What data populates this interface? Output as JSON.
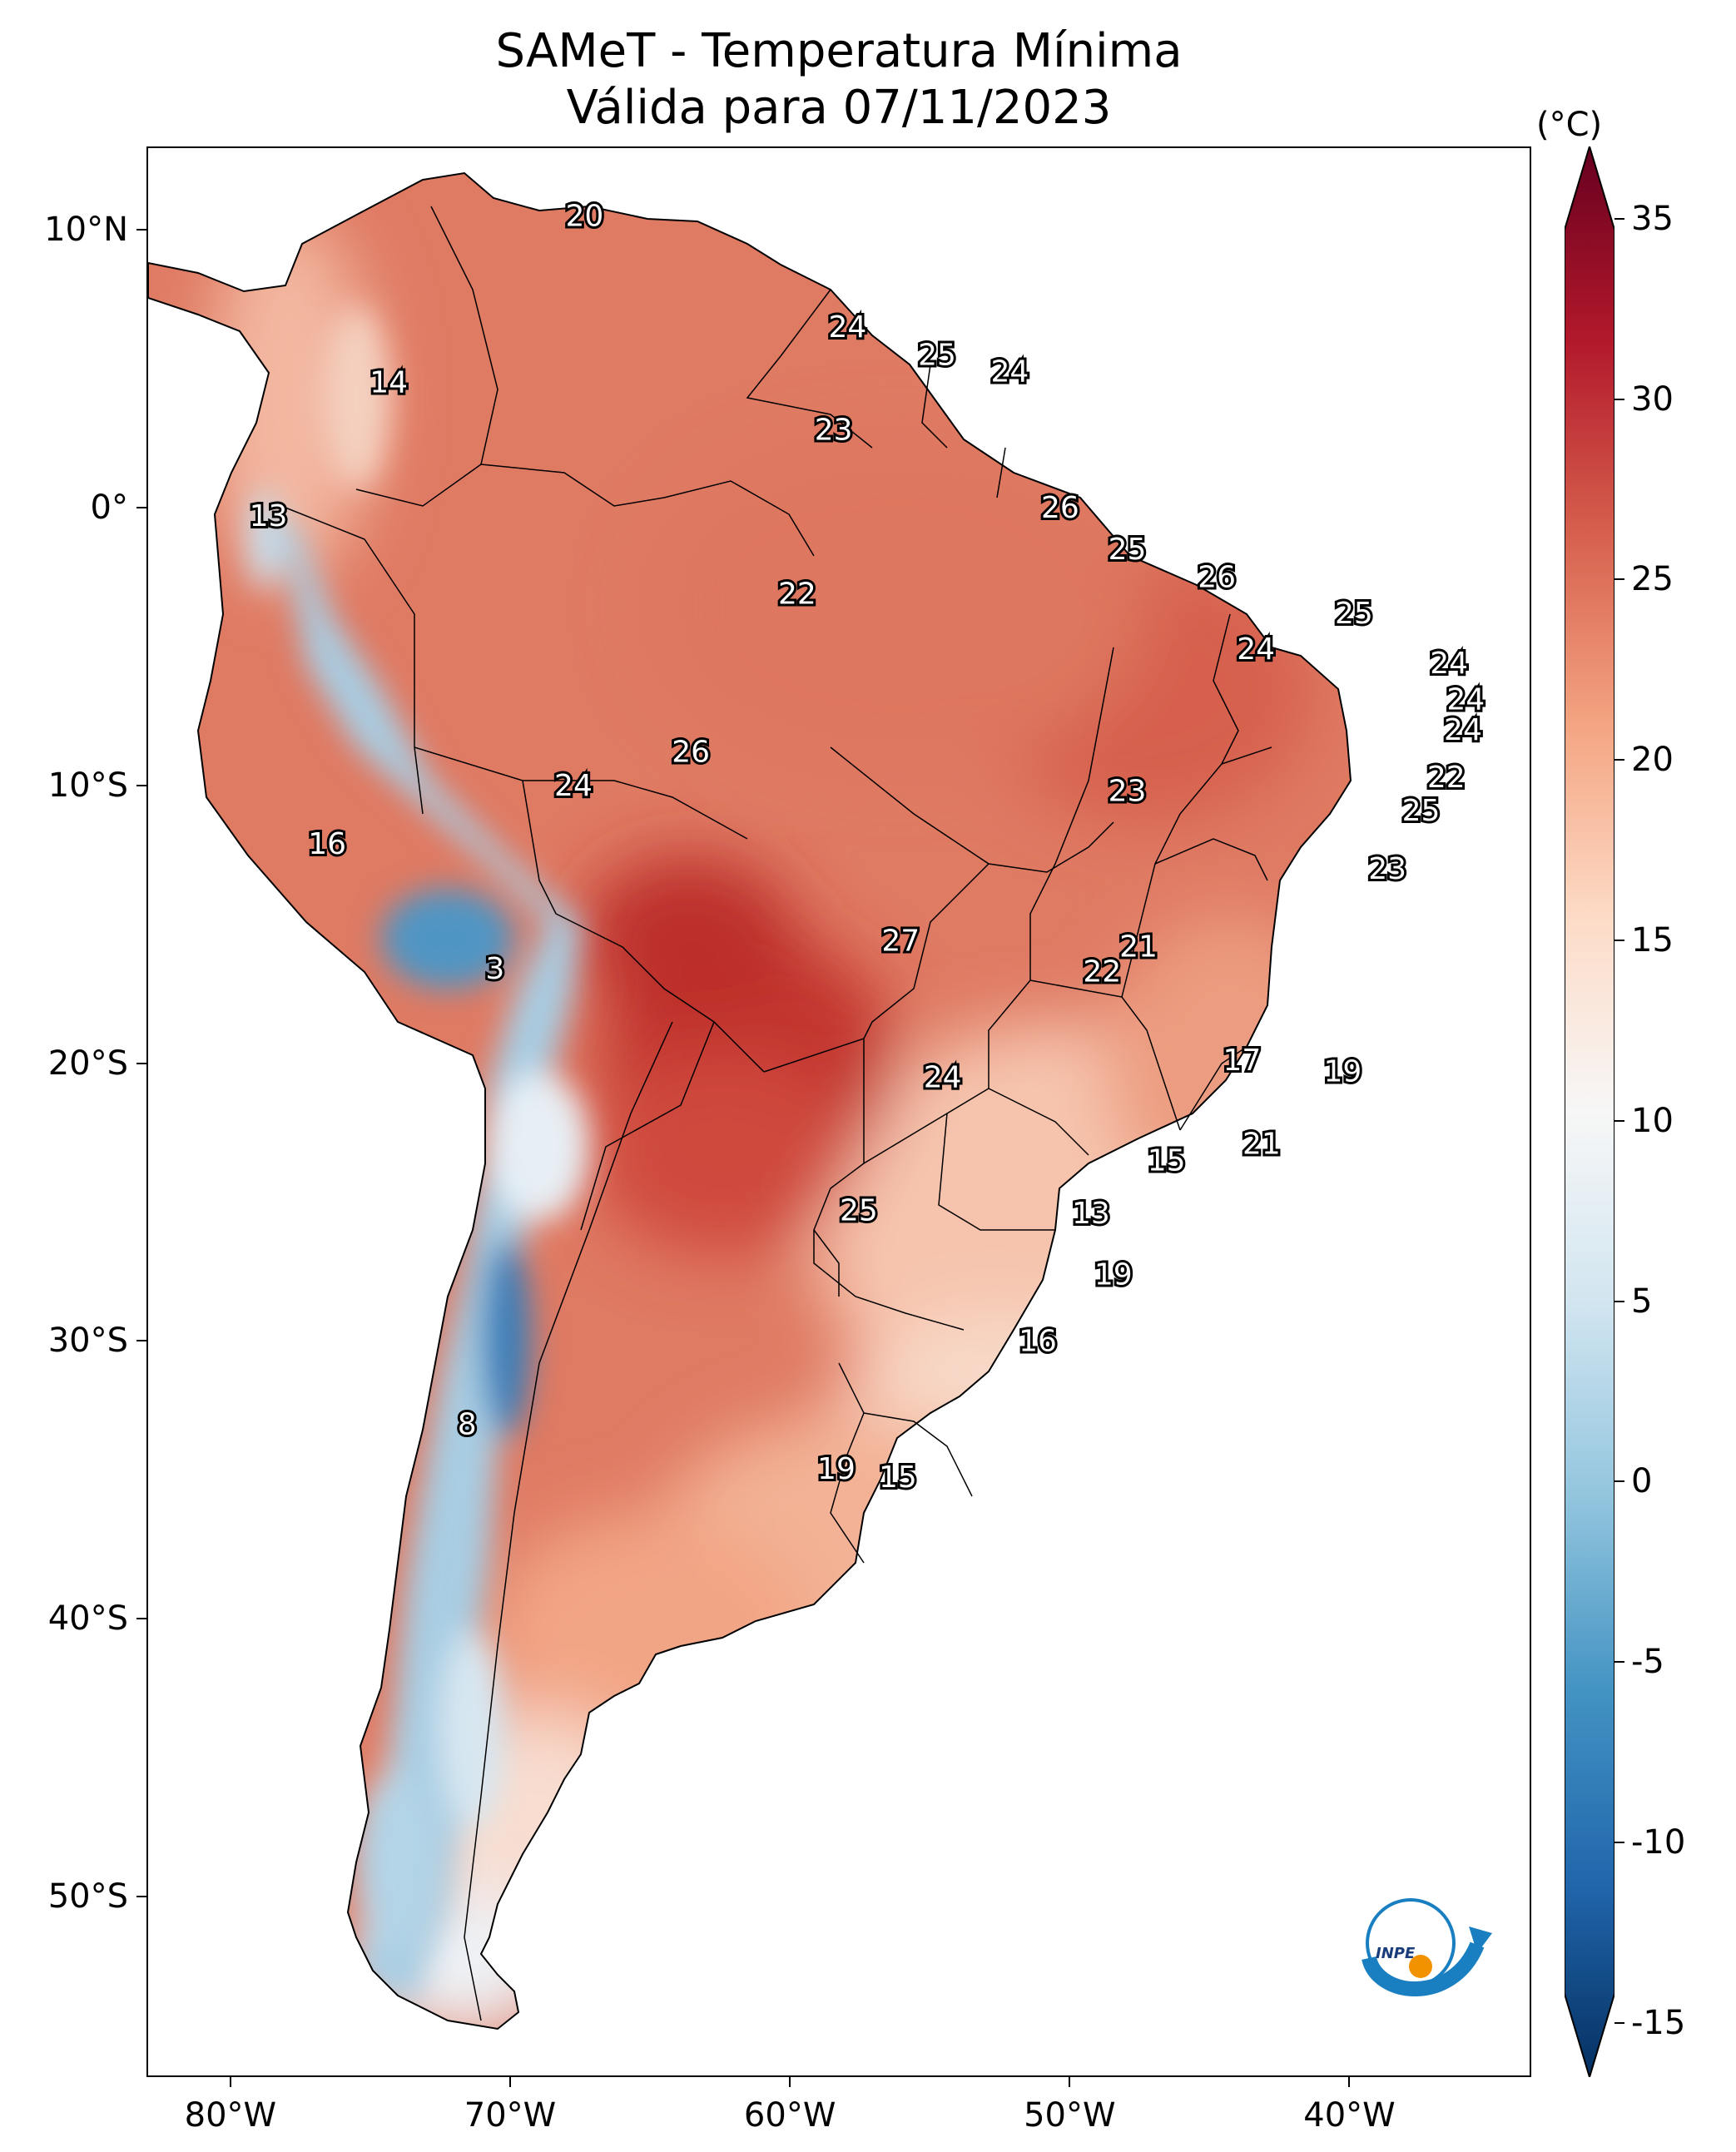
{
  "title": {
    "line1": "SAMeT - Temperatura Mínima",
    "line2": "Válida para 07/11/2023"
  },
  "axes": {
    "lat_ticks": [
      "10°N",
      "0°",
      "10°S",
      "20°S",
      "30°S",
      "40°S",
      "50°S"
    ],
    "lat_values": [
      10,
      0,
      -10,
      -20,
      -30,
      -40,
      -50
    ],
    "lon_ticks": [
      "80°W",
      "70°W",
      "60°W",
      "50°W",
      "40°W"
    ],
    "lon_values": [
      -80,
      -70,
      -60,
      -50,
      -40
    ],
    "lon_range": [
      -83,
      -33.5
    ],
    "lat_range": [
      -56.5,
      13
    ]
  },
  "colorbar": {
    "unit": "(°C)",
    "ticks": [
      "35",
      "30",
      "25",
      "20",
      "15",
      "10",
      "5",
      "0",
      "-5",
      "-10",
      "-15"
    ],
    "tick_values": [
      35,
      30,
      25,
      20,
      15,
      10,
      5,
      0,
      -5,
      -10,
      -15
    ],
    "range": [
      -16.5,
      37
    ],
    "colors": [
      "#053061",
      "#2166ac",
      "#4393c3",
      "#92c5de",
      "#d1e5f0",
      "#f7f7f7",
      "#fddbc7",
      "#f4a582",
      "#d6604d",
      "#b2182b",
      "#67001f"
    ]
  },
  "logo": {
    "text": "INPE",
    "colors": [
      "#1a7fc1",
      "#f39200"
    ]
  },
  "chart_data": {
    "type": "map",
    "variable": "minimum temperature",
    "units": "°C",
    "station_labels": [
      {
        "lon": -67.4,
        "lat": 10.5,
        "value": 20
      },
      {
        "lon": -58.0,
        "lat": 6.5,
        "value": 24
      },
      {
        "lon": -54.8,
        "lat": 5.5,
        "value": 25
      },
      {
        "lon": -52.2,
        "lat": 4.9,
        "value": 24
      },
      {
        "lon": -58.5,
        "lat": 2.8,
        "value": 23
      },
      {
        "lon": -74.4,
        "lat": 4.5,
        "value": 14
      },
      {
        "lon": -78.7,
        "lat": -0.3,
        "value": 13
      },
      {
        "lon": -50.4,
        "lat": 0.0,
        "value": 26
      },
      {
        "lon": -48.0,
        "lat": -1.5,
        "value": 25
      },
      {
        "lon": -59.8,
        "lat": -3.1,
        "value": 22
      },
      {
        "lon": -44.8,
        "lat": -2.5,
        "value": 26
      },
      {
        "lon": -39.9,
        "lat": -3.8,
        "value": 25
      },
      {
        "lon": -43.4,
        "lat": -5.1,
        "value": 24
      },
      {
        "lon": -36.5,
        "lat": -5.6,
        "value": 24
      },
      {
        "lon": -35.9,
        "lat": -6.9,
        "value": 24
      },
      {
        "lon": -36.0,
        "lat": -8.0,
        "value": 24
      },
      {
        "lon": -63.6,
        "lat": -8.8,
        "value": 26
      },
      {
        "lon": -67.8,
        "lat": -10.0,
        "value": 24
      },
      {
        "lon": -48.0,
        "lat": -10.2,
        "value": 23
      },
      {
        "lon": -36.6,
        "lat": -9.7,
        "value": 22
      },
      {
        "lon": -37.5,
        "lat": -10.9,
        "value": 25
      },
      {
        "lon": -76.6,
        "lat": -12.1,
        "value": 16
      },
      {
        "lon": -38.7,
        "lat": -13.0,
        "value": 23
      },
      {
        "lon": -56.1,
        "lat": -15.6,
        "value": 27
      },
      {
        "lon": -47.6,
        "lat": -15.8,
        "value": 21
      },
      {
        "lon": -48.9,
        "lat": -16.7,
        "value": 22
      },
      {
        "lon": -70.6,
        "lat": -16.6,
        "value": 3
      },
      {
        "lon": -43.9,
        "lat": -19.9,
        "value": 17
      },
      {
        "lon": -40.3,
        "lat": -20.3,
        "value": 19
      },
      {
        "lon": -54.6,
        "lat": -20.5,
        "value": 24
      },
      {
        "lon": -43.2,
        "lat": -22.9,
        "value": 21
      },
      {
        "lon": -46.6,
        "lat": -23.5,
        "value": 15
      },
      {
        "lon": -49.3,
        "lat": -25.4,
        "value": 13
      },
      {
        "lon": -57.6,
        "lat": -25.3,
        "value": 25
      },
      {
        "lon": -48.5,
        "lat": -27.6,
        "value": 19
      },
      {
        "lon": -51.2,
        "lat": -30.0,
        "value": 16
      },
      {
        "lon": -71.6,
        "lat": -33.0,
        "value": 8
      },
      {
        "lon": -58.4,
        "lat": -34.6,
        "value": 19
      },
      {
        "lon": -56.2,
        "lat": -34.9,
        "value": 15
      }
    ]
  }
}
